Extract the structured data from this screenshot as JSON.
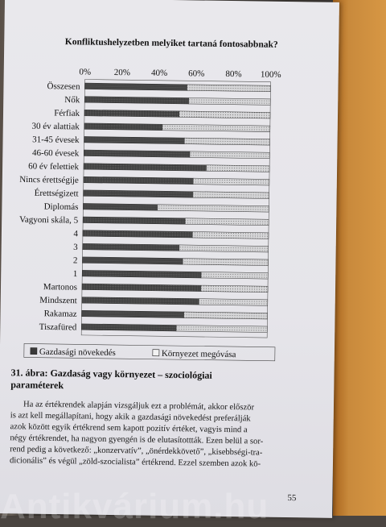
{
  "chart_data": {
    "type": "bar",
    "stacked": true,
    "orientation": "horizontal",
    "title": "Konfliktushelyzetben melyiket tartaná fontosabbnak?",
    "x_ticks": [
      "0%",
      "20%",
      "40%",
      "60%",
      "80%",
      "100%"
    ],
    "xlim": [
      0,
      100
    ],
    "categories": [
      "Összesen",
      "Nők",
      "Férfiak",
      "30 év alattiak",
      "31-45 évesek",
      "46-60 évesek",
      "60 év felettiek",
      "Nincs érettségije",
      "Érettségizett",
      "Diplomás",
      "Vagyoni skála, 5",
      "4",
      "3",
      "2",
      "1",
      "Martonos",
      "Mindszent",
      "Rakamaz",
      "Tiszafüred"
    ],
    "series": [
      {
        "name": "Gazdasági növekedés",
        "color": "#4a4a4a",
        "values": [
          55,
          56,
          51,
          42,
          54,
          57,
          66,
          59,
          59,
          40,
          55,
          59,
          52,
          54,
          64,
          64,
          63,
          55,
          51
        ]
      },
      {
        "name": "Környezet megóvása",
        "color": "#c8c8c8",
        "values": [
          45,
          44,
          49,
          58,
          46,
          43,
          34,
          41,
          41,
          60,
          45,
          41,
          48,
          46,
          36,
          36,
          37,
          45,
          49
        ]
      }
    ],
    "legend_position": "bottom",
    "grid": false
  },
  "caption": {
    "lines": [
      "31. ábra: Gazdaság vagy környezet – szociológiai",
      "paraméterek"
    ]
  },
  "body": {
    "lines": [
      "Ha az értékrendek alapján vizsgáljuk ezt a problémát, akkor először",
      "is azt kell megállapítani, hogy akik a gazdasági növekedést preferálják",
      "azok között egyik értékrend sem kapott pozitív értéket, vagyis mind a",
      "négy értékrendet, ha nagyon gyengén is de elutasítottták. Ezen belül a sor-",
      "rend pedig a következő: „konzervatív”, „önérdekkövető”, „kisebbségi-tra-",
      "dicionális” és végül „zöld-szocialista” értékrend. Ezzel szemben azok kö-"
    ]
  },
  "page_number": "55",
  "watermark": "Antikvárium.hu"
}
